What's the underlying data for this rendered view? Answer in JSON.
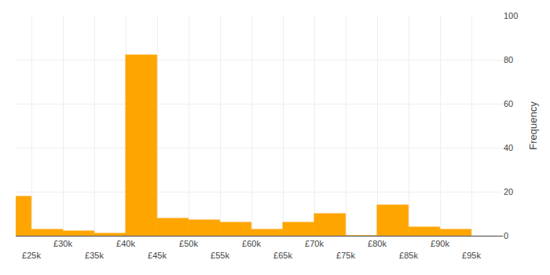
{
  "chart_data": {
    "type": "bar",
    "x": [
      22500,
      27500,
      32500,
      37500,
      42500,
      47500,
      52500,
      57500,
      62500,
      67500,
      72500,
      77500,
      82500,
      87500,
      92500
    ],
    "values": [
      18,
      3,
      2,
      1,
      82,
      8,
      7,
      6,
      3,
      6,
      10,
      0,
      14,
      4,
      3
    ],
    "color": "#FFA500",
    "ylabel": "Frequency",
    "xlim": [
      22500,
      100000
    ],
    "xticks": [
      {
        "value": 25000,
        "label": "£25k"
      },
      {
        "value": 30000,
        "label": "£30k"
      },
      {
        "value": 35000,
        "label": "£35k"
      },
      {
        "value": 40000,
        "label": "£40k"
      },
      {
        "value": 45000,
        "label": "£45k"
      },
      {
        "value": 50000,
        "label": "£50k"
      },
      {
        "value": 55000,
        "label": "£55k"
      },
      {
        "value": 60000,
        "label": "£60k"
      },
      {
        "value": 65000,
        "label": "£65k"
      },
      {
        "value": 70000,
        "label": "£70k"
      },
      {
        "value": 75000,
        "label": "£75k"
      },
      {
        "value": 80000,
        "label": "£80k"
      },
      {
        "value": 85000,
        "label": "£85k"
      },
      {
        "value": 90000,
        "label": "£90k"
      },
      {
        "value": 95000,
        "label": "£95k"
      }
    ],
    "ylim": [
      0,
      100
    ],
    "yticks": [
      0,
      20,
      40,
      60,
      80,
      100
    ],
    "grid": true
  }
}
